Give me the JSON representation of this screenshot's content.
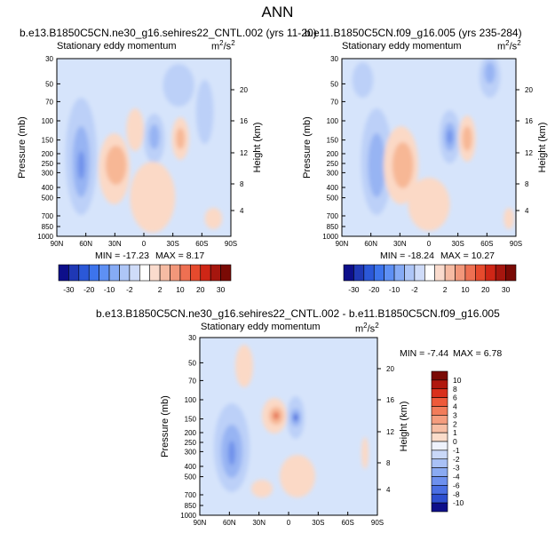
{
  "main_title": "ANN",
  "chart_data": [
    {
      "type": "contour",
      "title": "b.e13.B1850C5CN.ne30_g16.sehires22_CNTL.002 (yrs 11-20)",
      "variable": "Stationary eddy momentum",
      "units_base": "m",
      "units_exp": "2",
      "units_tail": "/s",
      "units_tail_exp": "2",
      "xlabel": "",
      "ylabel": "Pressure (mb)",
      "ylabel_right": "Height (km)",
      "xticks": [
        "90N",
        "60N",
        "30N",
        "0",
        "30S",
        "60S",
        "90S"
      ],
      "yticks": [
        "30",
        "50",
        "70",
        "100",
        "150",
        "200",
        "250",
        "300",
        "400",
        "500",
        "700",
        "850",
        "1000"
      ],
      "height_ticks": [
        "20",
        "16",
        "12",
        "8",
        "4"
      ],
      "min_label": "MIN = -17.23",
      "max_label": "MAX =   8.17",
      "min": -17.23,
      "max": 8.17
    },
    {
      "type": "contour",
      "title": "b.e11.B1850C5CN.f09_g16.005 (yrs 235-284)",
      "variable": "Stationary eddy momentum",
      "units_base": "m",
      "units_exp": "2",
      "units_tail": "/s",
      "units_tail_exp": "2",
      "xlabel": "",
      "ylabel": "Pressure (mb)",
      "ylabel_right": "Height (km)",
      "xticks": [
        "90N",
        "60N",
        "30N",
        "0",
        "30S",
        "60S",
        "90S"
      ],
      "yticks": [
        "30",
        "50",
        "70",
        "100",
        "150",
        "200",
        "250",
        "300",
        "400",
        "500",
        "700",
        "850",
        "1000"
      ],
      "height_ticks": [
        "20",
        "16",
        "12",
        "8",
        "4"
      ],
      "min_label": "MIN = -18.24",
      "max_label": "MAX =  10.27",
      "min": -18.24,
      "max": 10.27
    },
    {
      "type": "contour",
      "title": "b.e13.B1850C5CN.ne30_g16.sehires22_CNTL.002 - b.e11.B1850C5CN.f09_g16.005",
      "variable": "Stationary eddy momentum",
      "units_base": "m",
      "units_exp": "2",
      "units_tail": "/s",
      "units_tail_exp": "2",
      "xlabel": "",
      "ylabel": "Pressure (mb)",
      "ylabel_right": "Height (km)",
      "xticks": [
        "90N",
        "60N",
        "30N",
        "0",
        "30S",
        "60S",
        "90S"
      ],
      "yticks": [
        "30",
        "50",
        "70",
        "100",
        "150",
        "200",
        "250",
        "300",
        "400",
        "500",
        "700",
        "850",
        "1000"
      ],
      "height_ticks": [
        "20",
        "16",
        "12",
        "8",
        "4"
      ],
      "min_label": "MIN =  -7.44",
      "max_label": "MAX =   6.78",
      "min": -7.44,
      "max": 6.78
    }
  ],
  "colorbar_top": {
    "labels": [
      "-30",
      "-20",
      "-10",
      "-2",
      "2",
      "10",
      "20",
      "30"
    ],
    "colors": [
      "#0d0f8a",
      "#1f38b5",
      "#2b58d8",
      "#3d74ec",
      "#5e90f4",
      "#86abf5",
      "#aec6f7",
      "#cfdcf9",
      "#ffffff",
      "#fadbcd",
      "#f6bba3",
      "#f2977a",
      "#ee7052",
      "#e64a2d",
      "#cf2616",
      "#a6160e",
      "#7a0a05"
    ]
  },
  "colorbar_diff": {
    "labels": [
      "10",
      "8",
      "6",
      "4",
      "3",
      "2",
      "1",
      "0",
      "-1",
      "-2",
      "-3",
      "-4",
      "-6",
      "-8",
      "-10"
    ],
    "colors": [
      "#7a0a05",
      "#b0180e",
      "#d9301c",
      "#ee5a3a",
      "#f27c5a",
      "#f59d7e",
      "#f7bea4",
      "#fadcca",
      "#eef2fb",
      "#c9d8f8",
      "#a9c1f6",
      "#8aaaf2",
      "#6d90ee",
      "#4a6fe3",
      "#2d4fcf",
      "#0d0f8a"
    ]
  }
}
